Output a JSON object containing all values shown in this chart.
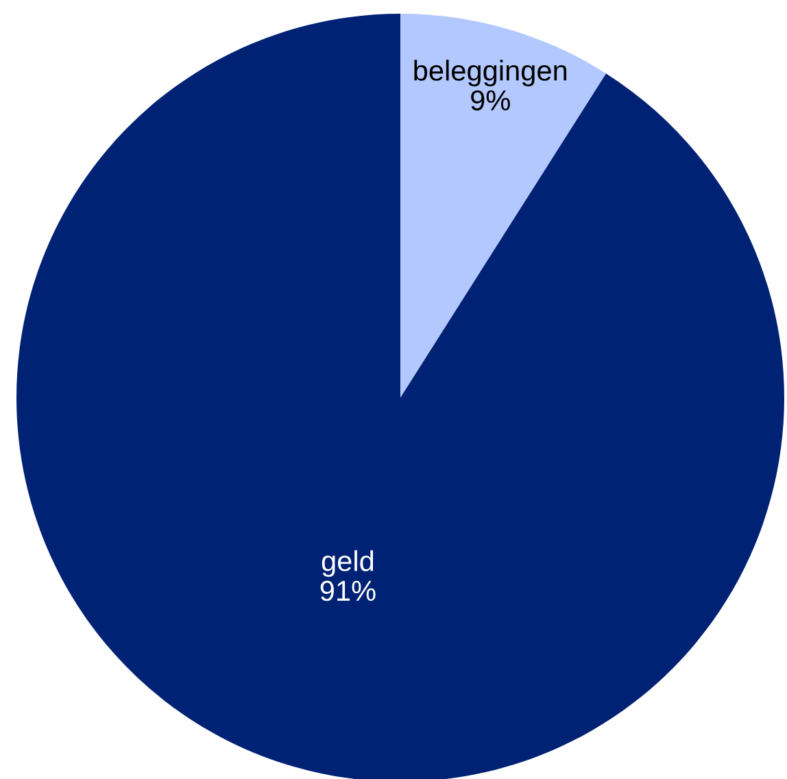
{
  "chart_data": {
    "type": "pie",
    "categories": [
      "beleggingen",
      "geld"
    ],
    "values": [
      9,
      91
    ],
    "colors": [
      "#b3c8ff",
      "#002275"
    ],
    "value_labels": [
      "9%",
      "91%"
    ]
  }
}
